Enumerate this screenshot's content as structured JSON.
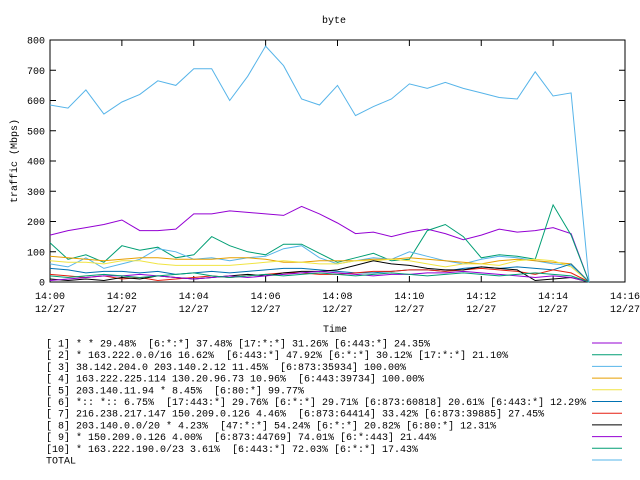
{
  "chart_data": {
    "type": "line",
    "title": "byte",
    "xlabel": "Time",
    "ylabel": "traffic (Mbps)",
    "x": [
      0,
      0.5,
      1,
      1.5,
      2,
      2.5,
      3,
      3.5,
      4,
      4.5,
      5,
      5.5,
      6,
      6.5,
      7,
      7.5,
      8,
      8.5,
      9,
      9.5,
      10,
      10.5,
      11,
      11.5,
      12,
      12.5,
      13,
      13.5,
      14,
      14.5,
      15
    ],
    "xlim": [
      0,
      16
    ],
    "xticks": [
      {
        "value": 0,
        "label": "14:00",
        "date": "12/27"
      },
      {
        "value": 2,
        "label": "14:02",
        "date": "12/27"
      },
      {
        "value": 4,
        "label": "14:04",
        "date": "12/27"
      },
      {
        "value": 6,
        "label": "14:06",
        "date": "12/27"
      },
      {
        "value": 8,
        "label": "14:08",
        "date": "12/27"
      },
      {
        "value": 10,
        "label": "14:10",
        "date": "12/27"
      },
      {
        "value": 12,
        "label": "14:12",
        "date": "12/27"
      },
      {
        "value": 14,
        "label": "14:14",
        "date": "12/27"
      },
      {
        "value": 16,
        "label": "14:16",
        "date": "12/27"
      }
    ],
    "ylim": [
      0,
      800
    ],
    "yticks": [
      0,
      100,
      200,
      300,
      400,
      500,
      600,
      700,
      800
    ],
    "grid": false,
    "series": [
      {
        "name": "[ 1] * * 29.48%  [6:*:*] 37.48% [17:*:*] 31.26% [6:443:*] 24.35%",
        "color": "#9400d3",
        "values": [
          155,
          170,
          180,
          190,
          205,
          170,
          170,
          175,
          225,
          225,
          235,
          230,
          225,
          220,
          250,
          225,
          195,
          160,
          165,
          150,
          165,
          175,
          160,
          140,
          155,
          175,
          165,
          170,
          180,
          160,
          0
        ]
      },
      {
        "name": "[ 2] * 163.222.0.0/16 16.62%  [6:443:*] 47.92% [6:*:*] 30.12% [17:*:*] 21.10%",
        "color": "#009e73",
        "values": [
          130,
          75,
          90,
          65,
          120,
          105,
          115,
          80,
          90,
          150,
          120,
          100,
          90,
          125,
          125,
          95,
          65,
          80,
          95,
          70,
          75,
          170,
          190,
          150,
          80,
          90,
          85,
          75,
          255,
          155,
          0
        ]
      },
      {
        "name": "[ 3] 38.142.204.0 203.140.2.12 11.45%  [6:873:35934] 100.00%",
        "color": "#56b4e9",
        "values": [
          60,
          50,
          80,
          45,
          60,
          75,
          110,
          100,
          75,
          80,
          70,
          80,
          85,
          110,
          120,
          80,
          60,
          70,
          80,
          75,
          100,
          85,
          70,
          60,
          75,
          85,
          80,
          70,
          60,
          55,
          0
        ]
      },
      {
        "name": "[ 4] 163.222.225.114 130.20.96.73 10.96%  [6:443:39734] 100.00%",
        "color": "#e69f00",
        "values": [
          85,
          80,
          75,
          70,
          75,
          80,
          80,
          75,
          75,
          75,
          80,
          80,
          75,
          65,
          65,
          70,
          70,
          70,
          75,
          75,
          80,
          75,
          70,
          65,
          60,
          70,
          75,
          70,
          65,
          60,
          0
        ]
      },
      {
        "name": "[ 5] 203.140.11.94 * 8.45%  [6:80:*] 99.77%",
        "color": "#f0e442",
        "values": [
          70,
          65,
          65,
          60,
          70,
          70,
          60,
          55,
          55,
          55,
          55,
          60,
          65,
          70,
          65,
          60,
          60,
          70,
          70,
          75,
          70,
          60,
          50,
          60,
          60,
          55,
          70,
          75,
          70,
          50,
          0
        ]
      },
      {
        "name": "[ 6] *:: *:: 6.75%  [17:443:*] 29.76% [6:*:*] 29.71% [6:873:60818] 20.61% [6:443:*] 12.29%",
        "color": "#0072b2",
        "values": [
          45,
          40,
          30,
          35,
          35,
          30,
          35,
          25,
          30,
          35,
          30,
          35,
          40,
          45,
          45,
          40,
          35,
          30,
          30,
          35,
          40,
          40,
          35,
          45,
          50,
          45,
          50,
          45,
          40,
          60,
          0
        ]
      },
      {
        "name": "[ 7] 216.238.217.147 150.209.0.126 4.46%  [6:873:64414] 33.42% [6:873:39885] 27.45%",
        "color": "#e51e10",
        "values": [
          25,
          20,
          15,
          20,
          10,
          15,
          5,
          10,
          15,
          20,
          15,
          20,
          25,
          30,
          30,
          25,
          25,
          30,
          35,
          35,
          40,
          40,
          35,
          40,
          45,
          40,
          35,
          25,
          40,
          30,
          0
        ]
      },
      {
        "name": "[ 8] 203.140.0.0/20 * 4.23%  [47:*:*] 54.24% [6:*:*] 20.82% [6:80:*] 12.31%",
        "color": "#000000",
        "values": [
          10,
          5,
          10,
          5,
          15,
          10,
          20,
          15,
          10,
          15,
          20,
          25,
          20,
          30,
          35,
          35,
          40,
          55,
          70,
          60,
          55,
          45,
          40,
          40,
          50,
          45,
          40,
          5,
          10,
          15,
          0
        ]
      },
      {
        "name": "[ 9] * 150.209.0.126 4.00%  [6:873:44769] 74.01% [6:*:443] 21.44%",
        "color": "#9400d3",
        "values": [
          5,
          10,
          15,
          20,
          20,
          25,
          20,
          15,
          10,
          15,
          20,
          15,
          20,
          25,
          30,
          35,
          30,
          25,
          20,
          25,
          25,
          30,
          30,
          35,
          30,
          25,
          20,
          15,
          20,
          15,
          0
        ]
      },
      {
        "name": "[10] * 163.222.190.0/23 3.61%  [6:443:*] 72.03% [6:*:*] 17.43%",
        "color": "#009e73",
        "values": [
          20,
          15,
          20,
          25,
          20,
          15,
          20,
          25,
          30,
          20,
          15,
          20,
          25,
          20,
          25,
          30,
          25,
          20,
          25,
          30,
          25,
          20,
          25,
          30,
          25,
          20,
          25,
          30,
          25,
          20,
          0
        ]
      },
      {
        "name": "TOTAL",
        "color": "#56b4e9",
        "values": [
          585,
          575,
          635,
          555,
          595,
          620,
          665,
          650,
          705,
          705,
          600,
          680,
          780,
          715,
          605,
          585,
          650,
          550,
          580,
          605,
          655,
          640,
          660,
          640,
          625,
          610,
          605,
          695,
          615,
          625,
          0
        ]
      }
    ]
  }
}
